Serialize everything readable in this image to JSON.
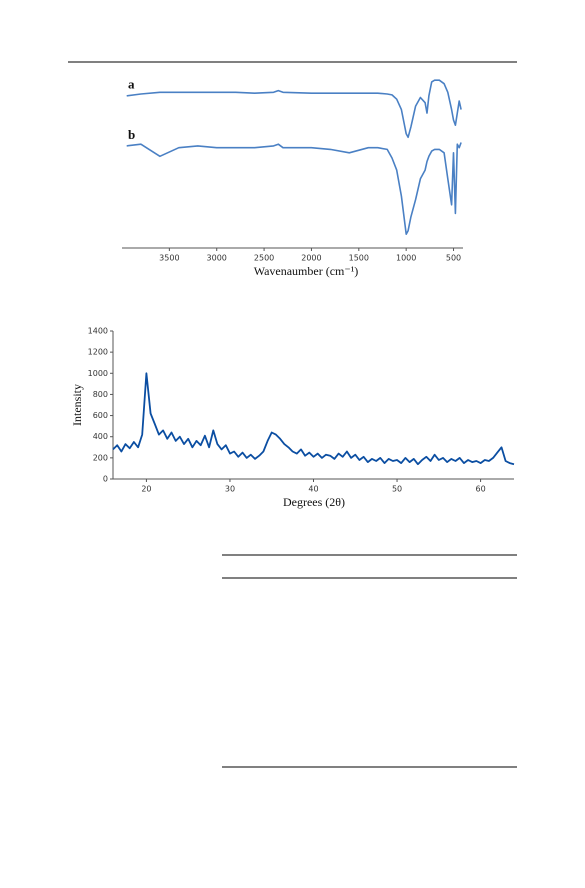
{
  "chart_data": [
    {
      "type": "line",
      "xlabel": "Wavenaumber (cm⁻¹)",
      "x": [
        3950,
        3800,
        3600,
        3400,
        3200,
        3000,
        2800,
        2600,
        2400,
        2350,
        2300,
        2000,
        1800,
        1600,
        1400,
        1300,
        1200,
        1150,
        1100,
        1050,
        1000,
        980,
        950,
        900,
        850,
        800,
        780,
        760,
        730,
        700,
        650,
        600,
        560,
        520,
        500,
        480,
        460,
        440,
        420
      ],
      "series": [
        {
          "name": "a",
          "color": "#4a80c4",
          "values": [
            88,
            89,
            90,
            90,
            90,
            90,
            90,
            89.5,
            90,
            91,
            90,
            89.5,
            89.5,
            89.5,
            89.5,
            89.5,
            89,
            88.5,
            86,
            80,
            66,
            64,
            70,
            82,
            87,
            84,
            78,
            88,
            96,
            97,
            97,
            95,
            90,
            80,
            74,
            71,
            78,
            85,
            80
          ]
        },
        {
          "name": "b",
          "color": "#4a80c4",
          "values": [
            59,
            60,
            53,
            58,
            59,
            58,
            58,
            58,
            59,
            60,
            58,
            58,
            57,
            55,
            58,
            58,
            57,
            52,
            45,
            30,
            8,
            10,
            18,
            28,
            40,
            45,
            50,
            53,
            56,
            57,
            57,
            55,
            40,
            25,
            55,
            20,
            60,
            58,
            61
          ]
        }
      ],
      "xlim": [
        4000,
        400
      ],
      "ylim": [
        0,
        100
      ],
      "xticks": [
        3500,
        3000,
        2500,
        2000,
        1500,
        1000,
        500
      ]
    },
    {
      "type": "line",
      "xlabel": "Degrees (2θ)",
      "ylabel": "Intensity",
      "x": [
        16,
        16.5,
        17,
        17.5,
        18,
        18.5,
        19,
        19.5,
        20,
        20.5,
        21,
        21.5,
        22,
        22.5,
        23,
        23.5,
        24,
        24.5,
        25,
        25.5,
        26,
        26.5,
        27,
        27.5,
        28,
        28.5,
        29,
        29.5,
        30,
        30.5,
        31,
        31.5,
        32,
        32.5,
        33,
        33.5,
        34,
        34.5,
        35,
        35.5,
        36,
        36.5,
        37,
        37.5,
        38,
        38.5,
        39,
        39.5,
        40,
        40.5,
        41,
        41.5,
        42,
        42.5,
        43,
        43.5,
        44,
        44.5,
        45,
        45.5,
        46,
        46.5,
        47,
        47.5,
        48,
        48.5,
        49,
        49.5,
        50,
        50.5,
        51,
        51.5,
        52,
        52.5,
        53,
        53.5,
        54,
        54.5,
        55,
        55.5,
        56,
        56.5,
        57,
        57.5,
        58,
        58.5,
        59,
        59.5,
        60,
        60.5,
        61,
        61.5,
        62,
        62.5,
        63,
        63.5,
        64
      ],
      "series": [
        {
          "name": "Intensity",
          "color": "#0b4ea2",
          "values": [
            280,
            320,
            260,
            330,
            290,
            350,
            300,
            420,
            1000,
            620,
            520,
            420,
            460,
            380,
            440,
            360,
            400,
            330,
            380,
            300,
            360,
            320,
            410,
            300,
            460,
            330,
            280,
            320,
            240,
            260,
            210,
            250,
            200,
            230,
            190,
            220,
            260,
            360,
            440,
            420,
            380,
            330,
            300,
            260,
            240,
            280,
            220,
            250,
            210,
            240,
            200,
            230,
            220,
            190,
            240,
            210,
            260,
            200,
            230,
            180,
            210,
            160,
            190,
            170,
            200,
            150,
            190,
            170,
            180,
            150,
            200,
            160,
            190,
            140,
            180,
            210,
            170,
            230,
            180,
            200,
            160,
            190,
            170,
            200,
            150,
            180,
            160,
            170,
            150,
            180,
            170,
            200,
            250,
            300,
            170,
            150,
            140
          ]
        }
      ],
      "xlim": [
        16,
        64
      ],
      "ylim": [
        0,
        1400
      ],
      "xticks": [
        20,
        30,
        40,
        50,
        60
      ],
      "yticks": [
        0,
        200,
        400,
        600,
        800,
        1000,
        1200,
        1400
      ]
    }
  ]
}
